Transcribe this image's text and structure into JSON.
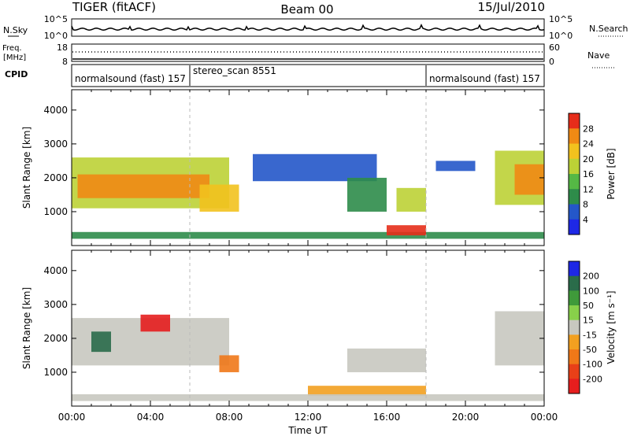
{
  "header": {
    "station": "TIGER (fitACF)",
    "beam": "Beam 00",
    "date": "15/Jul/2010"
  },
  "strip": {
    "nsky_label": "N.Sky",
    "nsky_ticks": [
      "10^5",
      "10^0"
    ],
    "nsearch_label": "N.Search",
    "freq_label": "Freq.",
    "freq_unit": "[MHz]",
    "freq_ticks": [
      "18",
      "8"
    ],
    "nave_label": "Nave",
    "nave_ticks": [
      "60",
      "0"
    ],
    "cpid_label": "CPID",
    "cpid_segments": [
      {
        "name": "normalsound (fast) 157",
        "start": "00:00",
        "end": "06:00"
      },
      {
        "name": "stereo_scan 8551",
        "start": "06:00",
        "end": "18:00"
      },
      {
        "name": "normalsound (fast) 157",
        "start": "18:00",
        "end": "24:00"
      }
    ]
  },
  "xaxis": {
    "label": "Time UT",
    "ticks": [
      "00:00",
      "04:00",
      "08:00",
      "12:00",
      "16:00",
      "20:00",
      "00:00"
    ]
  },
  "colors": {
    "power_scale": [
      "#1e28e6",
      "#2457c9",
      "#2e8c4a",
      "#55b845",
      "#bcd236",
      "#f2c21e",
      "#f08a14",
      "#e62d1a"
    ],
    "velocity_scale": [
      "#1e28e6",
      "#2a6c4a",
      "#3f9a3a",
      "#88d04a",
      "#c8c8c0",
      "#f2a020",
      "#f07818",
      "#e84018",
      "#e61e1e"
    ]
  },
  "chart_data": [
    {
      "type": "heatmap",
      "title": "",
      "ylabel": "Slant Range [km]",
      "xlabel": "",
      "ylim": [
        0,
        4600
      ],
      "yticks": [
        "1000",
        "2000",
        "3000",
        "4000"
      ],
      "colorbar": {
        "label": "Power [dB]",
        "ticks": [
          "4",
          "8",
          "12",
          "16",
          "20",
          "24",
          "28"
        ],
        "range": [
          0,
          32
        ]
      },
      "regions": [
        {
          "t0": 0.0,
          "t1": 8.0,
          "r0": 1100,
          "r1": 2600,
          "value": 18
        },
        {
          "t0": 0.3,
          "t1": 7.0,
          "r0": 1400,
          "r1": 2100,
          "value": 27
        },
        {
          "t0": 6.5,
          "t1": 8.5,
          "r0": 1000,
          "r1": 1800,
          "value": 22
        },
        {
          "t0": 9.2,
          "t1": 15.5,
          "r0": 1900,
          "r1": 2700,
          "value": 6
        },
        {
          "t0": 14.0,
          "t1": 16.0,
          "r0": 1000,
          "r1": 2000,
          "value": 10
        },
        {
          "t0": 16.5,
          "t1": 18.0,
          "r0": 1000,
          "r1": 1700,
          "value": 18
        },
        {
          "t0": 18.5,
          "t1": 20.5,
          "r0": 2200,
          "r1": 2500,
          "value": 6
        },
        {
          "t0": 21.5,
          "t1": 24.0,
          "r0": 1200,
          "r1": 2800,
          "value": 16
        },
        {
          "t0": 22.5,
          "t1": 24.0,
          "r0": 1500,
          "r1": 2400,
          "value": 26
        },
        {
          "t0": 0.0,
          "t1": 24.0,
          "r0": 200,
          "r1": 400,
          "value": 8
        },
        {
          "t0": 16.0,
          "t1": 18.0,
          "r0": 300,
          "r1": 600,
          "value": 28
        }
      ]
    },
    {
      "type": "heatmap",
      "title": "",
      "ylabel": "Slant Range [km]",
      "xlabel": "Time UT",
      "ylim": [
        0,
        4600
      ],
      "yticks": [
        "1000",
        "2000",
        "3000",
        "4000"
      ],
      "colorbar": {
        "label": "Velocity [m s⁻¹]",
        "ticks": [
          "200",
          "100",
          "50",
          "15",
          "-15",
          "-50",
          "-100",
          "-200"
        ],
        "range": [
          -250,
          250
        ]
      },
      "regions": [
        {
          "t0": 0.0,
          "t1": 8.0,
          "r0": 1200,
          "r1": 2600,
          "value": 0
        },
        {
          "t0": 1.0,
          "t1": 2.0,
          "r0": 1600,
          "r1": 2200,
          "value": 150
        },
        {
          "t0": 3.5,
          "t1": 5.0,
          "r0": 2200,
          "r1": 2700,
          "value": -200
        },
        {
          "t0": 7.5,
          "t1": 8.5,
          "r0": 1000,
          "r1": 1500,
          "value": -120
        },
        {
          "t0": 14.0,
          "t1": 18.0,
          "r0": 1000,
          "r1": 1700,
          "value": 0
        },
        {
          "t0": 12.0,
          "t1": 18.0,
          "r0": 300,
          "r1": 600,
          "value": -40
        },
        {
          "t0": 21.5,
          "t1": 24.0,
          "r0": 1200,
          "r1": 2800,
          "value": 0
        },
        {
          "t0": 0.0,
          "t1": 24.0,
          "r0": 150,
          "r1": 350,
          "value": 20
        }
      ]
    }
  ]
}
